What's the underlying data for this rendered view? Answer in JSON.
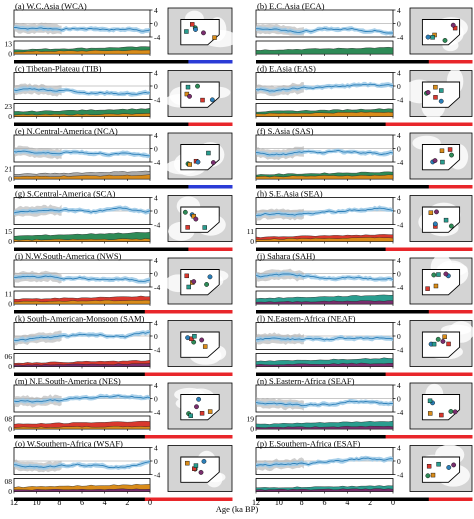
{
  "figure": {
    "xlabel": "Age (ka BP)",
    "x_ticks": [
      12,
      10,
      8,
      6,
      4,
      2,
      0
    ],
    "y_ticks_upper": [
      4,
      0,
      -4
    ],
    "colors": {
      "band": "#9ac8e6",
      "line": "#2c7fb8",
      "gray": "#a8a8a8",
      "green": "#2e8b57",
      "orange": "#d98c1a",
      "red": "#d9382e",
      "teal": "#2a9d8f",
      "purple": "#7a2e6e",
      "bar_black": "#000000",
      "bar_red": "#e8262a",
      "bar_blue": "#2b3bd6"
    }
  },
  "chart_data": [
    {
      "type": "area",
      "label": "(a) W.C.Asia (WCA)",
      "left_ticks": [
        "13",
        "0"
      ],
      "trend": 0.2,
      "lower": [
        {
          "color": "green",
          "level": 0.55
        },
        {
          "color": "orange",
          "level": 0.3
        }
      ],
      "bar": [
        "black",
        "black",
        "black",
        "black",
        "blue"
      ]
    },
    {
      "type": "area",
      "label": "(b) E.C.Asia (ECA)",
      "left_ticks": [],
      "trend": 0.3,
      "lower": [
        {
          "color": "green",
          "level": 0.5
        }
      ],
      "bar": [
        "black",
        "black",
        "black",
        "black",
        "red"
      ]
    },
    {
      "type": "area",
      "label": "(c) Tibetan-Plateau (TIB)",
      "left_ticks": [
        "23",
        "0"
      ],
      "trend": 0.1,
      "lower": [
        {
          "color": "green",
          "level": 0.6
        },
        {
          "color": "orange",
          "level": 0.2
        }
      ],
      "bar": [
        "black",
        "black",
        "black",
        "black",
        "red"
      ]
    },
    {
      "type": "area",
      "label": "(d) E.Asia (EAS)",
      "left_ticks": [],
      "trend": 0.2,
      "lower": [
        {
          "color": "green",
          "level": 0.6
        },
        {
          "color": "orange",
          "level": 0.35
        }
      ],
      "bar": [
        "black",
        "black",
        "black",
        "red",
        "red"
      ]
    },
    {
      "type": "area",
      "label": "(e) N.Central-America (NCA)",
      "left_ticks": [
        "21",
        "0"
      ],
      "trend": 0.0,
      "lower": [
        {
          "color": "gray",
          "level": 0.6
        },
        {
          "color": "orange",
          "level": 0.3
        }
      ],
      "bar": [
        "black",
        "black",
        "black",
        "black",
        "blue"
      ]
    },
    {
      "type": "area",
      "label": "(f) S.Asia (SAS)",
      "left_ticks": [],
      "trend": 0.1,
      "lower": [
        {
          "color": "green",
          "level": 0.55
        },
        {
          "color": "orange",
          "level": 0.3
        }
      ],
      "bar": [
        "black",
        "black",
        "black",
        "black",
        "red"
      ]
    },
    {
      "type": "area",
      "label": "(g) S.Central-America (SCA)",
      "left_ticks": [
        "15",
        "0"
      ],
      "trend": 0.0,
      "lower": [
        {
          "color": "green",
          "level": 0.7
        },
        {
          "color": "orange",
          "level": 0.2
        }
      ],
      "bar": [
        "black",
        "black",
        "black",
        "black",
        "red"
      ]
    },
    {
      "type": "area",
      "label": "(h) S.E.Asia (SEA)",
      "left_ticks": [
        "11",
        "0"
      ],
      "trend": 0.4,
      "lower": [
        {
          "color": "red",
          "level": 0.55
        },
        {
          "color": "orange",
          "level": 0.3
        }
      ],
      "bar": [
        "black",
        "black",
        "black",
        "red",
        "red"
      ]
    },
    {
      "type": "area",
      "label": "(i) N.W.South-America (NWS)",
      "left_ticks": [
        "11",
        "0"
      ],
      "trend": 0.3,
      "lower": [
        {
          "color": "red",
          "level": 0.6
        },
        {
          "color": "orange",
          "level": 0.3
        }
      ],
      "bar": [
        "black",
        "black",
        "black",
        "red",
        "red"
      ]
    },
    {
      "type": "area",
      "label": "(j) Sahara (SAH)",
      "left_ticks": [],
      "trend": -0.2,
      "lower": [
        {
          "color": "teal",
          "level": 0.7
        },
        {
          "color": "purple",
          "level": 0.25
        }
      ],
      "bar": [
        "black",
        "black",
        "black",
        "black",
        "red"
      ]
    },
    {
      "type": "area",
      "label": "(k) South-American-Monsoon (SAM)",
      "left_ticks": [
        "06",
        "0"
      ],
      "trend": 0.2,
      "lower": [
        {
          "color": "red",
          "level": 0.45
        },
        {
          "color": "purple",
          "level": 0.2
        }
      ],
      "bar": [
        "black",
        "black",
        "black",
        "red",
        "red"
      ]
    },
    {
      "type": "area",
      "label": "(l) N.Eastern-Africa (NEAF)",
      "left_ticks": [],
      "trend": 0.1,
      "lower": [
        {
          "color": "teal",
          "level": 0.65
        },
        {
          "color": "purple",
          "level": 0.25
        }
      ],
      "bar": [
        "black",
        "black",
        "black",
        "red",
        "red"
      ]
    },
    {
      "type": "area",
      "label": "(m) N.E.South-America (NES)",
      "left_ticks": [
        "08",
        "0"
      ],
      "trend": 0.1,
      "lower": [
        {
          "color": "red",
          "level": 0.6
        },
        {
          "color": "orange",
          "level": 0.2
        }
      ],
      "bar": [
        "black",
        "black",
        "black",
        "red",
        "red"
      ]
    },
    {
      "type": "area",
      "label": "(n) S.Eastern-Africa (SEAF)",
      "left_ticks": [
        "19",
        "0"
      ],
      "trend": 0.1,
      "lower": [
        {
          "color": "teal",
          "level": 0.6
        },
        {
          "color": "purple",
          "level": 0.2
        }
      ],
      "bar": [
        "black",
        "black",
        "black",
        "red",
        "red"
      ]
    },
    {
      "type": "area",
      "label": "(o) W.Southern-Africa (WSAF)",
      "left_ticks": [
        "08",
        "0"
      ],
      "trend": 0.1,
      "lower": [
        {
          "color": "orange",
          "level": 0.55
        },
        {
          "color": "purple",
          "level": 0.2
        }
      ],
      "bar": [
        "black",
        "black",
        "black",
        "red",
        "red"
      ]
    },
    {
      "type": "area",
      "label": "(p) E.Southern-Africa (ESAF)",
      "left_ticks": [],
      "trend": 0.3,
      "lower": [
        {
          "color": "teal",
          "level": 0.45
        },
        {
          "color": "purple",
          "level": 0.2
        }
      ],
      "bar": [
        "black",
        "black",
        "black",
        "black",
        "red"
      ]
    }
  ]
}
